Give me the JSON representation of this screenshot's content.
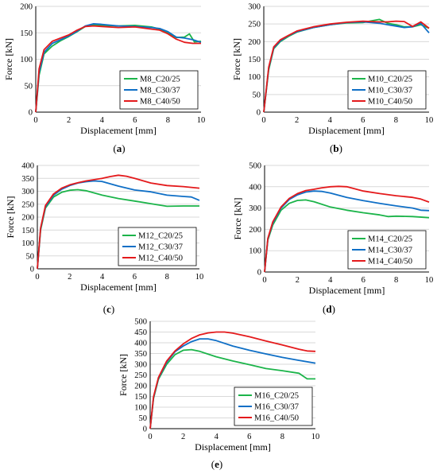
{
  "colors": {
    "green": "#1cb44a",
    "blue": "#0f6fc6",
    "red": "#e41a1c",
    "grid": "#d9d9d9",
    "axis": "#000000"
  },
  "chart_data": [
    {
      "type": "line",
      "id": "a",
      "caption": {
        "open": "(",
        "letter": "a",
        "close": ")"
      },
      "xlabel": "Displacement [mm]",
      "ylabel": "Force [kN]",
      "xlim": [
        0,
        10
      ],
      "ylim": [
        0,
        200
      ],
      "xticks": [
        "0",
        "2",
        "4",
        "6",
        "8",
        "10"
      ],
      "yticks": [
        "0",
        "50",
        "100",
        "150",
        "200"
      ],
      "legend_position": "bottom-right",
      "grid": "horizontal",
      "series": [
        {
          "name": "M8_C20/25",
          "color_key": "green",
          "x": [
            0,
            0.2,
            0.5,
            1,
            1.5,
            2,
            2.5,
            3,
            3.5,
            4,
            5,
            6,
            7,
            7.5,
            8,
            8.5,
            9,
            9.3,
            9.6,
            10
          ],
          "y": [
            0,
            70,
            110,
            125,
            135,
            143,
            152,
            162,
            165,
            164,
            163,
            164,
            161,
            157,
            150,
            141,
            142,
            148,
            133,
            134
          ]
        },
        {
          "name": "M8_C30/37",
          "color_key": "blue",
          "x": [
            0,
            0.2,
            0.5,
            1,
            1.5,
            2,
            2.5,
            3,
            3.5,
            4,
            5,
            6,
            7,
            7.5,
            8,
            8.5,
            9,
            9.5,
            10
          ],
          "y": [
            0,
            75,
            113,
            130,
            137,
            144,
            153,
            163,
            167,
            166,
            163,
            162,
            160,
            158,
            152,
            142,
            140,
            137,
            132
          ]
        },
        {
          "name": "M8_C40/50",
          "color_key": "red",
          "x": [
            0,
            0.2,
            0.5,
            1,
            1.5,
            2,
            2.5,
            3,
            3.5,
            4,
            5,
            6,
            7,
            7.5,
            8,
            8.5,
            9,
            9.5,
            10
          ],
          "y": [
            0,
            82,
            118,
            134,
            140,
            146,
            155,
            162,
            163,
            162,
            160,
            161,
            157,
            155,
            148,
            138,
            132,
            130,
            130
          ]
        }
      ]
    },
    {
      "type": "line",
      "id": "b",
      "caption": {
        "open": "(",
        "letter": "b",
        "close": ")"
      },
      "xlabel": "Displacement [mm]",
      "ylabel": "Force [kN]",
      "xlim": [
        0,
        10
      ],
      "ylim": [
        0,
        300
      ],
      "xticks": [
        "0",
        "2",
        "4",
        "6",
        "8",
        "10"
      ],
      "yticks": [
        "0",
        "50",
        "100",
        "150",
        "200",
        "250",
        "300"
      ],
      "legend_position": "bottom-right",
      "grid": "horizontal",
      "series": [
        {
          "name": "M10_C20/25",
          "color_key": "green",
          "x": [
            0,
            0.3,
            0.6,
            1,
            1.5,
            2,
            3,
            4,
            5,
            6,
            6.5,
            7,
            7.5,
            8,
            8.5,
            9,
            9.5,
            10
          ],
          "y": [
            0,
            120,
            180,
            200,
            215,
            227,
            240,
            248,
            253,
            254,
            259,
            263,
            252,
            248,
            242,
            242,
            248,
            238
          ]
        },
        {
          "name": "M10_C30/37",
          "color_key": "blue",
          "x": [
            0,
            0.3,
            0.6,
            1,
            1.5,
            2,
            3,
            4,
            5,
            6,
            6.5,
            7,
            7.5,
            8,
            8.5,
            9,
            9.5,
            10
          ],
          "y": [
            0,
            125,
            182,
            202,
            217,
            228,
            240,
            248,
            254,
            256,
            254,
            252,
            248,
            244,
            240,
            242,
            252,
            225
          ]
        },
        {
          "name": "M10_C40/50",
          "color_key": "red",
          "x": [
            0,
            0.3,
            0.6,
            1,
            1.5,
            2,
            3,
            4,
            5,
            6,
            6.5,
            7,
            7.5,
            8,
            8.5,
            9,
            9.5,
            10
          ],
          "y": [
            0,
            128,
            185,
            205,
            218,
            230,
            242,
            250,
            255,
            258,
            257,
            256,
            256,
            258,
            257,
            243,
            256,
            238
          ]
        }
      ]
    },
    {
      "type": "line",
      "id": "c",
      "caption": {
        "open": "(",
        "letter": "c",
        "close": ")"
      },
      "xlabel": "Displacement [mm]",
      "ylabel": "Force [kN]",
      "xlim": [
        0,
        10
      ],
      "ylim": [
        0,
        400
      ],
      "xticks": [
        "0",
        "2",
        "4",
        "6",
        "8",
        "10"
      ],
      "yticks": [
        "0",
        "50",
        "100",
        "150",
        "200",
        "250",
        "300",
        "350",
        "400"
      ],
      "legend_position": "bottom-right",
      "grid": "horizontal",
      "series": [
        {
          "name": "M12_C20/25",
          "color_key": "green",
          "x": [
            0,
            0.2,
            0.5,
            1,
            1.5,
            2,
            2.5,
            3,
            4,
            5,
            6,
            7,
            8,
            9,
            10
          ],
          "y": [
            0,
            150,
            235,
            278,
            296,
            304,
            306,
            302,
            285,
            272,
            262,
            252,
            242,
            243,
            243
          ]
        },
        {
          "name": "M12_C30/37",
          "color_key": "blue",
          "x": [
            0,
            0.2,
            0.5,
            1,
            1.5,
            2,
            2.5,
            3,
            3.5,
            4,
            5,
            6,
            7,
            8,
            9,
            9.5,
            10
          ],
          "y": [
            0,
            155,
            240,
            285,
            308,
            322,
            332,
            337,
            340,
            338,
            320,
            305,
            298,
            285,
            280,
            278,
            265
          ]
        },
        {
          "name": "M12_C40/50",
          "color_key": "red",
          "x": [
            0,
            0.2,
            0.5,
            1,
            1.5,
            2,
            2.5,
            3,
            4,
            4.5,
            5,
            5.5,
            6,
            7,
            8,
            9,
            10
          ],
          "y": [
            0,
            158,
            245,
            290,
            312,
            325,
            333,
            340,
            350,
            357,
            362,
            358,
            350,
            332,
            322,
            318,
            312
          ]
        }
      ]
    },
    {
      "type": "line",
      "id": "d",
      "caption": {
        "open": "(",
        "letter": "d",
        "close": ")"
      },
      "xlabel": "Displacement [mm]",
      "ylabel": "Force [kN]",
      "xlim": [
        0,
        10
      ],
      "ylim": [
        0,
        500
      ],
      "xticks": [
        "0",
        "2",
        "4",
        "6",
        "8",
        "10"
      ],
      "yticks": [
        "0",
        "100",
        "200",
        "300",
        "400",
        "500"
      ],
      "legend_position": "bottom-right",
      "grid": "horizontal",
      "series": [
        {
          "name": "M14_C20/25",
          "color_key": "green",
          "x": [
            0,
            0.2,
            0.5,
            1,
            1.5,
            2,
            2.5,
            3,
            4,
            5,
            6,
            7,
            7.5,
            8,
            9,
            10
          ],
          "y": [
            0,
            150,
            220,
            290,
            322,
            336,
            338,
            330,
            305,
            290,
            278,
            268,
            260,
            262,
            260,
            255
          ]
        },
        {
          "name": "M14_C30/37",
          "color_key": "blue",
          "x": [
            0,
            0.2,
            0.5,
            1,
            1.5,
            2,
            2.5,
            3,
            3.5,
            4,
            5,
            6,
            7,
            8,
            9,
            9.5,
            10
          ],
          "y": [
            0,
            155,
            230,
            300,
            340,
            362,
            375,
            380,
            378,
            370,
            350,
            335,
            322,
            310,
            300,
            290,
            288
          ]
        },
        {
          "name": "M14_C40/50",
          "color_key": "red",
          "x": [
            0,
            0.2,
            0.5,
            1,
            1.5,
            2,
            2.5,
            3,
            3.5,
            4,
            4.5,
            5,
            5.5,
            6,
            7,
            8,
            9,
            9.5,
            10
          ],
          "y": [
            0,
            158,
            235,
            305,
            345,
            368,
            382,
            388,
            395,
            400,
            402,
            400,
            390,
            380,
            368,
            358,
            350,
            342,
            328
          ]
        }
      ]
    },
    {
      "type": "line",
      "id": "e",
      "caption": {
        "open": "(",
        "letter": "e",
        "close": ")"
      },
      "xlabel": "Displacement [mm]",
      "ylabel": "Force [kN]",
      "xlim": [
        0,
        10
      ],
      "ylim": [
        0,
        500
      ],
      "xticks": [
        "0",
        "2",
        "4",
        "6",
        "8",
        "10"
      ],
      "yticks": [
        "0",
        "50",
        "100",
        "150",
        "200",
        "250",
        "300",
        "350",
        "400",
        "450",
        "500"
      ],
      "legend_position": "bottom-right",
      "grid": "horizontal",
      "series": [
        {
          "name": "M16_C20/25",
          "color_key": "green",
          "x": [
            0,
            0.2,
            0.5,
            1,
            1.5,
            2,
            2.5,
            3,
            4,
            5,
            6,
            7,
            8,
            9,
            9.5,
            10
          ],
          "y": [
            0,
            140,
            230,
            300,
            345,
            365,
            368,
            360,
            335,
            315,
            298,
            280,
            270,
            258,
            232,
            232
          ]
        },
        {
          "name": "M16_C30/37",
          "color_key": "blue",
          "x": [
            0,
            0.2,
            0.5,
            1,
            1.5,
            2,
            2.5,
            3,
            3.5,
            4,
            5,
            6,
            7,
            8,
            9,
            10
          ],
          "y": [
            0,
            145,
            235,
            310,
            358,
            385,
            405,
            418,
            418,
            410,
            385,
            365,
            348,
            332,
            318,
            305
          ]
        },
        {
          "name": "M16_C40/50",
          "color_key": "red",
          "x": [
            0,
            0.2,
            0.5,
            1,
            1.5,
            2,
            2.5,
            3,
            3.5,
            4,
            4.5,
            5,
            6,
            7,
            8,
            9,
            9.5,
            10
          ],
          "y": [
            0,
            148,
            238,
            315,
            362,
            395,
            420,
            437,
            446,
            450,
            450,
            445,
            428,
            408,
            390,
            370,
            362,
            360
          ]
        }
      ]
    }
  ]
}
